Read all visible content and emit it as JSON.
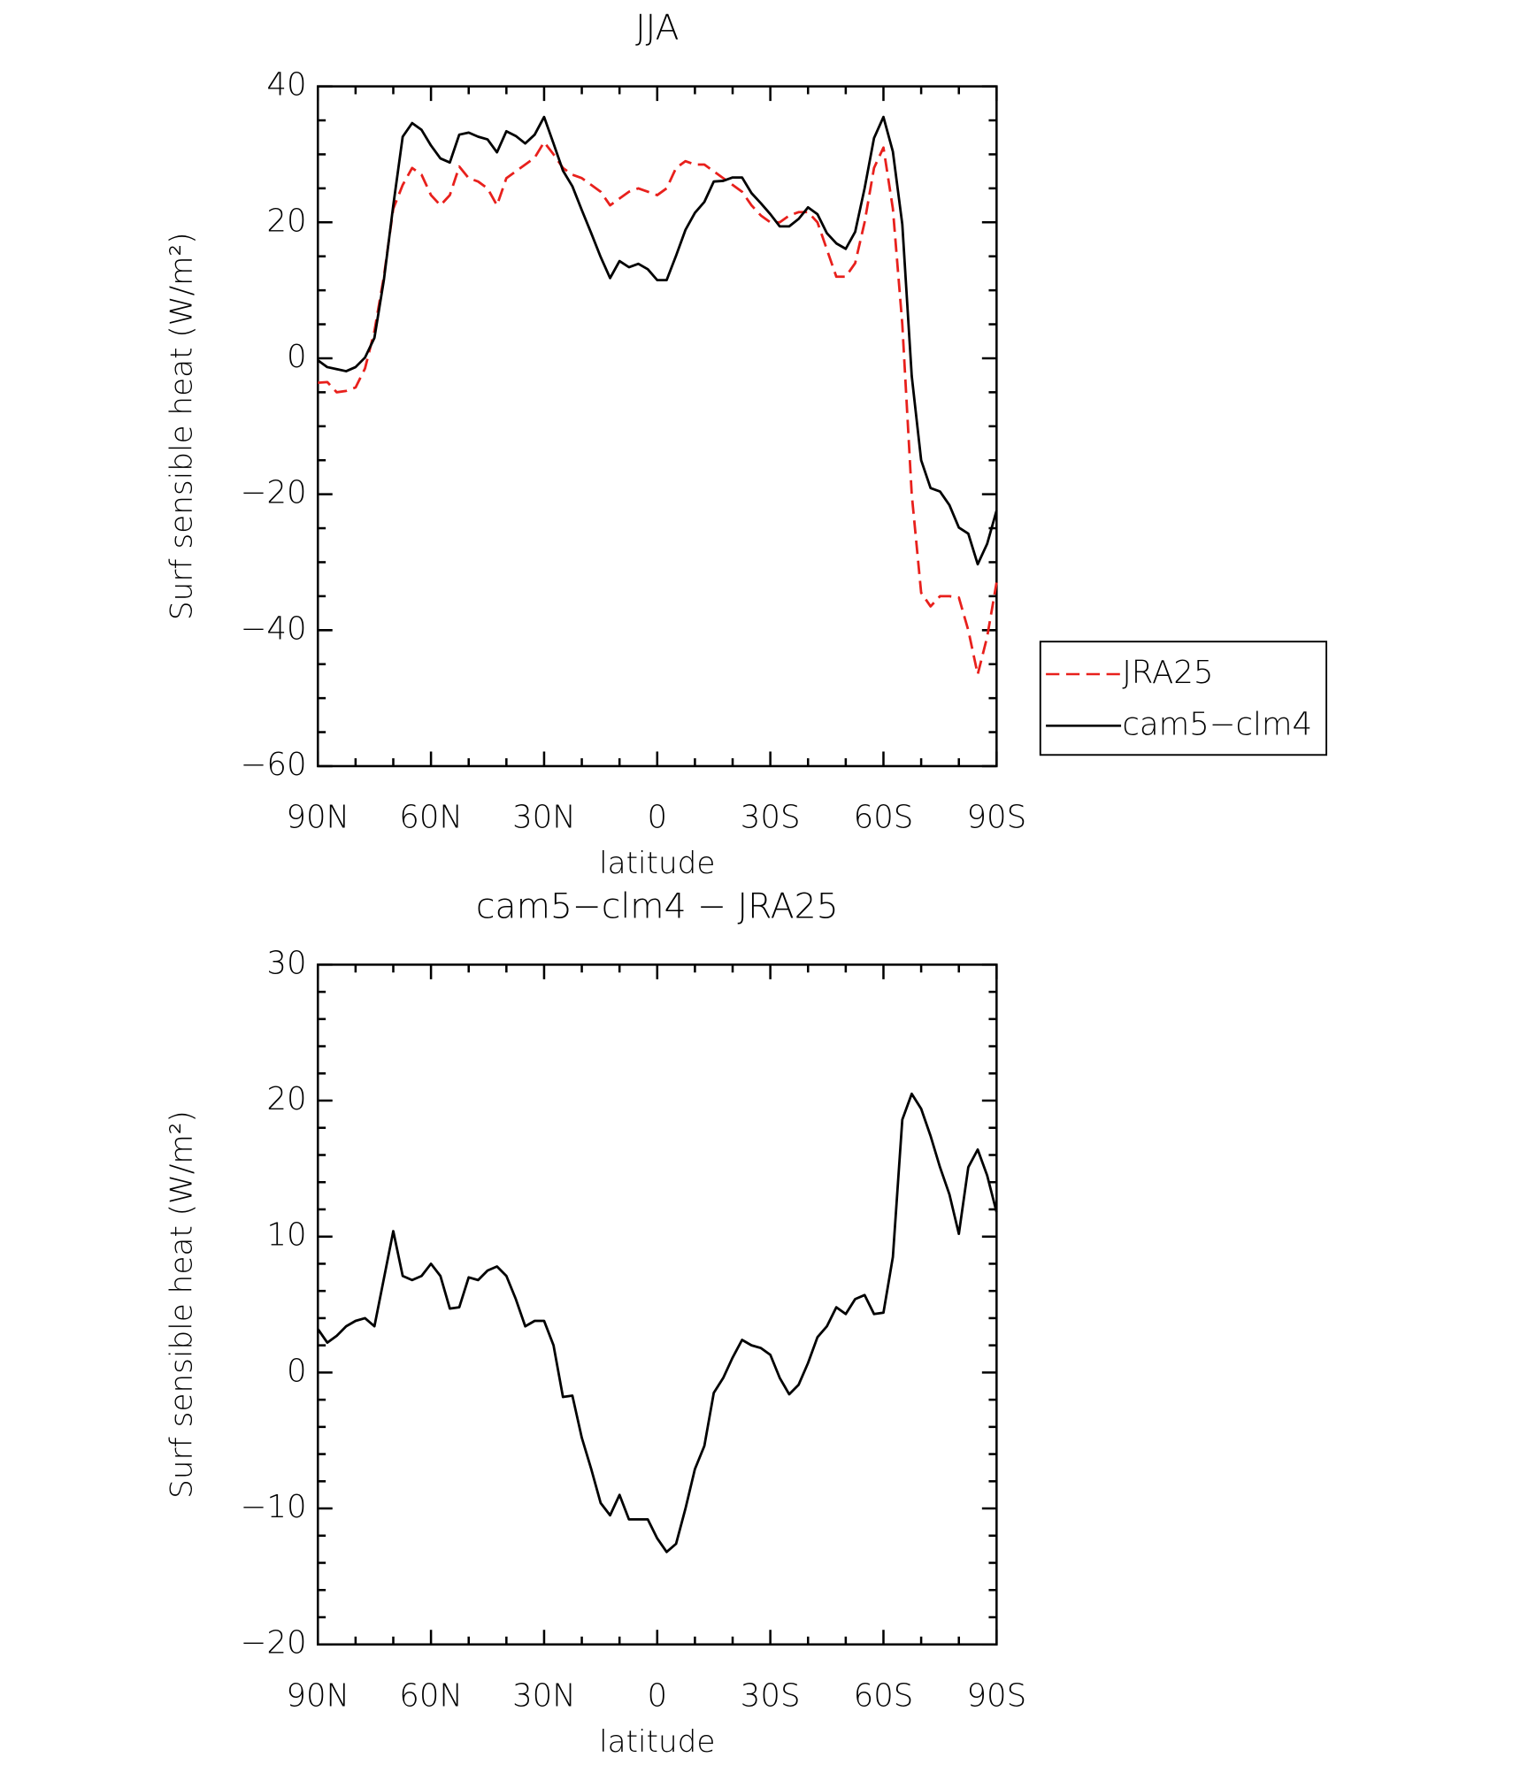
{
  "chart_data": [
    {
      "type": "line",
      "title": "JJA",
      "xlabel": "latitude",
      "ylabel": "Surf sensible heat (W/m²)",
      "x": [
        90,
        87.5,
        85,
        82.5,
        80,
        77.5,
        75,
        72.5,
        70,
        67.5,
        65,
        62.5,
        60,
        57.5,
        55,
        52.5,
        50,
        47.5,
        45,
        42.5,
        40,
        37.5,
        35,
        32.5,
        30,
        27.5,
        25,
        22.5,
        20,
        17.5,
        15,
        12.5,
        10,
        7.5,
        5,
        2.5,
        0,
        -2.5,
        -5,
        -7.5,
        -10,
        -12.5,
        -15,
        -17.5,
        -20,
        -22.5,
        -25,
        -27.5,
        -30,
        -32.5,
        -35,
        -37.5,
        -40,
        -42.5,
        -45,
        -47.5,
        -50,
        -52.5,
        -55,
        -57.5,
        -60,
        -62.5,
        -65,
        -67.5,
        -70,
        -72.5,
        -75,
        -77.5,
        -80,
        -82.5,
        -85,
        -87.5,
        -90
      ],
      "series": [
        {
          "name": "JRA25",
          "color": "#e8201c",
          "style": "dashed",
          "values": [
            -3.6,
            -3.5,
            -5.0,
            -4.8,
            -4.3,
            -1.5,
            4,
            12,
            22,
            25.5,
            28,
            27,
            24,
            22.5,
            24,
            28.2,
            26.5,
            26,
            25,
            22.5,
            26.5,
            27.5,
            28.5,
            29.5,
            31.8,
            30,
            28,
            27,
            26.5,
            25.5,
            24.5,
            22.5,
            23.5,
            24.5,
            25,
            24.5,
            24,
            25,
            28,
            29,
            28.5,
            28.5,
            27.5,
            26.5,
            25.5,
            24.5,
            22.5,
            21,
            20,
            20,
            21,
            21.5,
            21.5,
            20,
            16,
            12,
            12,
            14,
            20,
            28,
            31,
            22,
            5,
            -20,
            -34.5,
            -36.5,
            -35,
            -35,
            -35.2,
            -40,
            -46.5,
            -41,
            -33
          ]
        },
        {
          "name": "cam5−clm4",
          "color": "#000000",
          "style": "solid",
          "values": [
            -0.3,
            -1.3,
            -1.6,
            -1.9,
            -1.3,
            0.1,
            3.0,
            11.5,
            22.5,
            32.6,
            34.6,
            33.6,
            31.3,
            29.4,
            28.8,
            32.9,
            33.2,
            32.6,
            32.2,
            30.3,
            33.4,
            32.7,
            31.6,
            32.9,
            35.5,
            31.6,
            27.6,
            25.3,
            21.8,
            18.4,
            14.9,
            11.8,
            14.3,
            13.4,
            13.9,
            13.1,
            11.5,
            11.5,
            15.1,
            18.9,
            21.4,
            23.0,
            26.0,
            26.1,
            26.6,
            26.6,
            24.3,
            22.8,
            21.2,
            19.4,
            19.4,
            20.5,
            22.2,
            21.2,
            18.4,
            16.9,
            16.1,
            18.6,
            25.0,
            32.4,
            35.5,
            30.4,
            19.7,
            -2.6,
            -15.0,
            -19.1,
            -19.6,
            -21.6,
            -24.9,
            -25.8,
            -30.3,
            -27.3,
            -22.4
          ]
        }
      ],
      "xlim": [
        90,
        -90
      ],
      "xticks": [
        {
          "value": 90,
          "label": "90N"
        },
        {
          "value": 60,
          "label": "60N"
        },
        {
          "value": 30,
          "label": "30N"
        },
        0,
        {
          "value": -30,
          "label": "30S"
        },
        {
          "value": -60,
          "label": "60S"
        },
        {
          "value": -90,
          "label": "90S"
        }
      ],
      "ylim": [
        -60,
        40
      ],
      "yticks": [
        {
          "value": -60,
          "label": "−60"
        },
        {
          "value": -40,
          "label": "−40"
        },
        {
          "value": -20,
          "label": "−20"
        },
        0,
        20,
        40
      ],
      "legend": "right"
    },
    {
      "type": "line",
      "title": "cam5−clm4 − JRA25",
      "xlabel": "latitude",
      "ylabel": "Surf sensible heat (W/m²)",
      "x": [
        90,
        87.5,
        85,
        82.5,
        80,
        77.5,
        75,
        72.5,
        70,
        67.5,
        65,
        62.5,
        60,
        57.5,
        55,
        52.5,
        50,
        47.5,
        45,
        42.5,
        40,
        37.5,
        35,
        32.5,
        30,
        27.5,
        25,
        22.5,
        20,
        17.5,
        15,
        12.5,
        10,
        7.5,
        5,
        2.5,
        0,
        -2.5,
        -5,
        -7.5,
        -10,
        -12.5,
        -15,
        -17.5,
        -20,
        -22.5,
        -25,
        -27.5,
        -30,
        -32.5,
        -35,
        -37.5,
        -40,
        -42.5,
        -45,
        -47.5,
        -50,
        -52.5,
        -55,
        -57.5,
        -60,
        -62.5,
        -65,
        -67.5,
        -70,
        -72.5,
        -75,
        -77.5,
        -80,
        -82.5,
        -85,
        -87.5,
        -90
      ],
      "color": "#000000",
      "values": [
        3.2,
        2.2,
        2.7,
        3.4,
        3.8,
        4.0,
        3.4,
        6.9,
        10.4,
        7.1,
        6.8,
        7.1,
        8.0,
        7.1,
        4.7,
        4.8,
        7.0,
        6.8,
        7.5,
        7.8,
        7.1,
        5.4,
        3.4,
        3.8,
        3.8,
        2.0,
        -1.8,
        -1.7,
        -4.8,
        -7.1,
        -9.6,
        -10.5,
        -9.0,
        -10.8,
        -10.8,
        -10.8,
        -12.2,
        -13.2,
        -12.6,
        -10.0,
        -7.1,
        -5.4,
        -1.5,
        -0.4,
        1.1,
        2.4,
        2.0,
        1.8,
        1.3,
        -0.4,
        -1.6,
        -0.9,
        0.7,
        2.6,
        3.4,
        4.8,
        4.3,
        5.4,
        5.7,
        4.3,
        4.4,
        8.5,
        18.6,
        20.5,
        19.4,
        17.4,
        15.1,
        13.1,
        10.2,
        15.1,
        16.4,
        14.5,
        11.8
      ],
      "xlim": [
        90,
        -90
      ],
      "xticks": [
        {
          "value": 90,
          "label": "90N"
        },
        {
          "value": 60,
          "label": "60N"
        },
        {
          "value": 30,
          "label": "30N"
        },
        0,
        {
          "value": -30,
          "label": "30S"
        },
        {
          "value": -60,
          "label": "60S"
        },
        {
          "value": -90,
          "label": "90S"
        }
      ],
      "ylim": [
        -20,
        30
      ],
      "yticks": [
        {
          "value": -20,
          "label": "−20"
        },
        {
          "value": -10,
          "label": "−10"
        },
        0,
        10,
        20,
        30
      ]
    }
  ]
}
